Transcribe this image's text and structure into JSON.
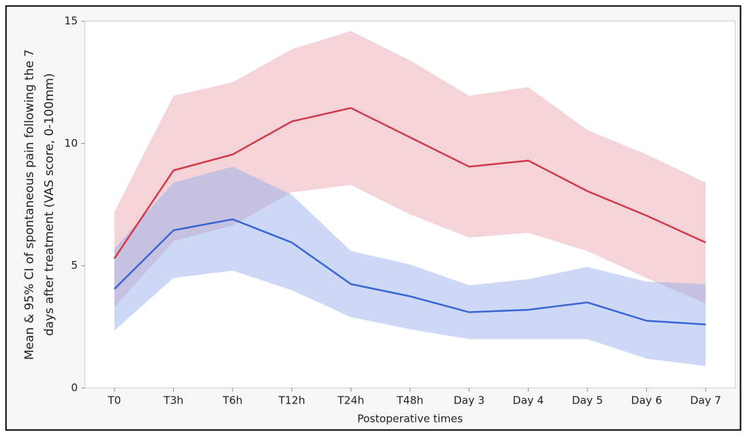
{
  "chart_data": {
    "type": "line-band",
    "xlabel": "Postoperative times",
    "ylabel": [
      "Mean & 95% CI of spontaneous pain following the 7",
      "days after treatment (VAS score, 0-100mm)"
    ],
    "categories": [
      "T0",
      "T3h",
      "T6h",
      "T12h",
      "T24h",
      "T48h",
      "Day 3",
      "Day 4",
      "Day 5",
      "Day 6",
      "Day 7"
    ],
    "series": [
      {
        "color": "#d03a48",
        "band_color": "#e8a0aa",
        "values": [
          5.3,
          8.9,
          9.55,
          10.9,
          11.45,
          10.25,
          9.05,
          9.3,
          8.05,
          7.05,
          5.95
        ],
        "upper": [
          7.2,
          11.95,
          12.5,
          13.85,
          14.6,
          13.4,
          11.95,
          12.3,
          10.55,
          9.55,
          8.4
        ],
        "lower": [
          3.3,
          6.0,
          6.65,
          8.0,
          8.3,
          7.1,
          6.15,
          6.35,
          5.6,
          4.5,
          3.45
        ]
      },
      {
        "color": "#3a66d4",
        "band_color": "#8fa9ec",
        "values": [
          4.05,
          6.45,
          6.9,
          5.95,
          4.25,
          3.75,
          3.1,
          3.2,
          3.5,
          2.75,
          2.6
        ],
        "upper": [
          5.7,
          8.4,
          9.05,
          7.9,
          5.6,
          5.05,
          4.2,
          4.45,
          4.95,
          4.35,
          4.25
        ],
        "lower": [
          2.35,
          4.5,
          4.8,
          4.0,
          2.9,
          2.4,
          2.0,
          2.0,
          2.0,
          1.2,
          0.9
        ]
      }
    ],
    "ylim": [
      0,
      15
    ],
    "yticks": [
      0,
      5,
      10,
      15
    ]
  }
}
